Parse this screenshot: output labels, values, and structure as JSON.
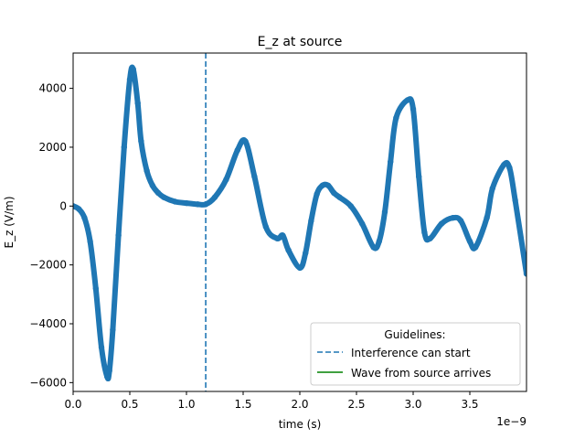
{
  "chart_data": {
    "type": "scatter",
    "title": "E_z at source",
    "xlabel": "time (s)",
    "ylabel": "E_z (V/m)",
    "x_offset_label": "1e−9",
    "xlim": [
      0,
      4.0
    ],
    "ylim": [
      -6300,
      5200
    ],
    "x_ticks": [
      0.0,
      0.5,
      1.0,
      1.5,
      2.0,
      2.5,
      3.0,
      3.5
    ],
    "x_tick_labels": [
      "0.0",
      "0.5",
      "1.0",
      "1.5",
      "2.0",
      "2.5",
      "3.0",
      "3.5"
    ],
    "y_ticks": [
      -6000,
      -4000,
      -2000,
      0,
      2000,
      4000
    ],
    "y_tick_labels": [
      "−6000",
      "−4000",
      "−2000",
      "0",
      "2000",
      "4000"
    ],
    "grid": false,
    "series": [
      {
        "color": "#1f77b4",
        "x": [
          0.0,
          0.05,
          0.1,
          0.15,
          0.2,
          0.25,
          0.3,
          0.32,
          0.35,
          0.4,
          0.45,
          0.5,
          0.53,
          0.57,
          0.6,
          0.65,
          0.7,
          0.75,
          0.8,
          0.9,
          1.0,
          1.1,
          1.17,
          1.25,
          1.35,
          1.45,
          1.52,
          1.6,
          1.7,
          1.8,
          1.85,
          1.9,
          2.0,
          2.05,
          2.1,
          2.15,
          2.2,
          2.25,
          2.3,
          2.35,
          2.45,
          2.55,
          2.65,
          2.7,
          2.75,
          2.8,
          2.85,
          2.95,
          3.0,
          3.05,
          3.1,
          3.15,
          3.25,
          3.35,
          3.42,
          3.5,
          3.55,
          3.65,
          3.7,
          3.8,
          3.85,
          3.9,
          4.0
        ],
        "y": [
          0,
          -100,
          -400,
          -1200,
          -2800,
          -4800,
          -5800,
          -5600,
          -4200,
          -1000,
          2000,
          4300,
          4650,
          3500,
          2200,
          1200,
          700,
          450,
          300,
          150,
          100,
          60,
          60,
          300,
          900,
          1900,
          2200,
          1000,
          -700,
          -1100,
          -1000,
          -1500,
          -2100,
          -1600,
          -500,
          400,
          700,
          700,
          450,
          300,
          0,
          -600,
          -1400,
          -1200,
          -200,
          1500,
          3000,
          3600,
          3300,
          1000,
          -900,
          -1100,
          -600,
          -400,
          -500,
          -1200,
          -1400,
          -400,
          600,
          1400,
          1300,
          200,
          -2300
        ]
      }
    ],
    "vlines": [
      {
        "x": 1.17,
        "style": "dashed",
        "color": "#1f77b4"
      }
    ],
    "legend": {
      "placement": "lower-right",
      "title": "Guidelines:",
      "entries": [
        {
          "label": "Interference can start",
          "style": "dashed",
          "color": "#1f77b4"
        },
        {
          "label": "Wave from source arrives",
          "style": "solid",
          "color": "#008000"
        }
      ]
    }
  }
}
